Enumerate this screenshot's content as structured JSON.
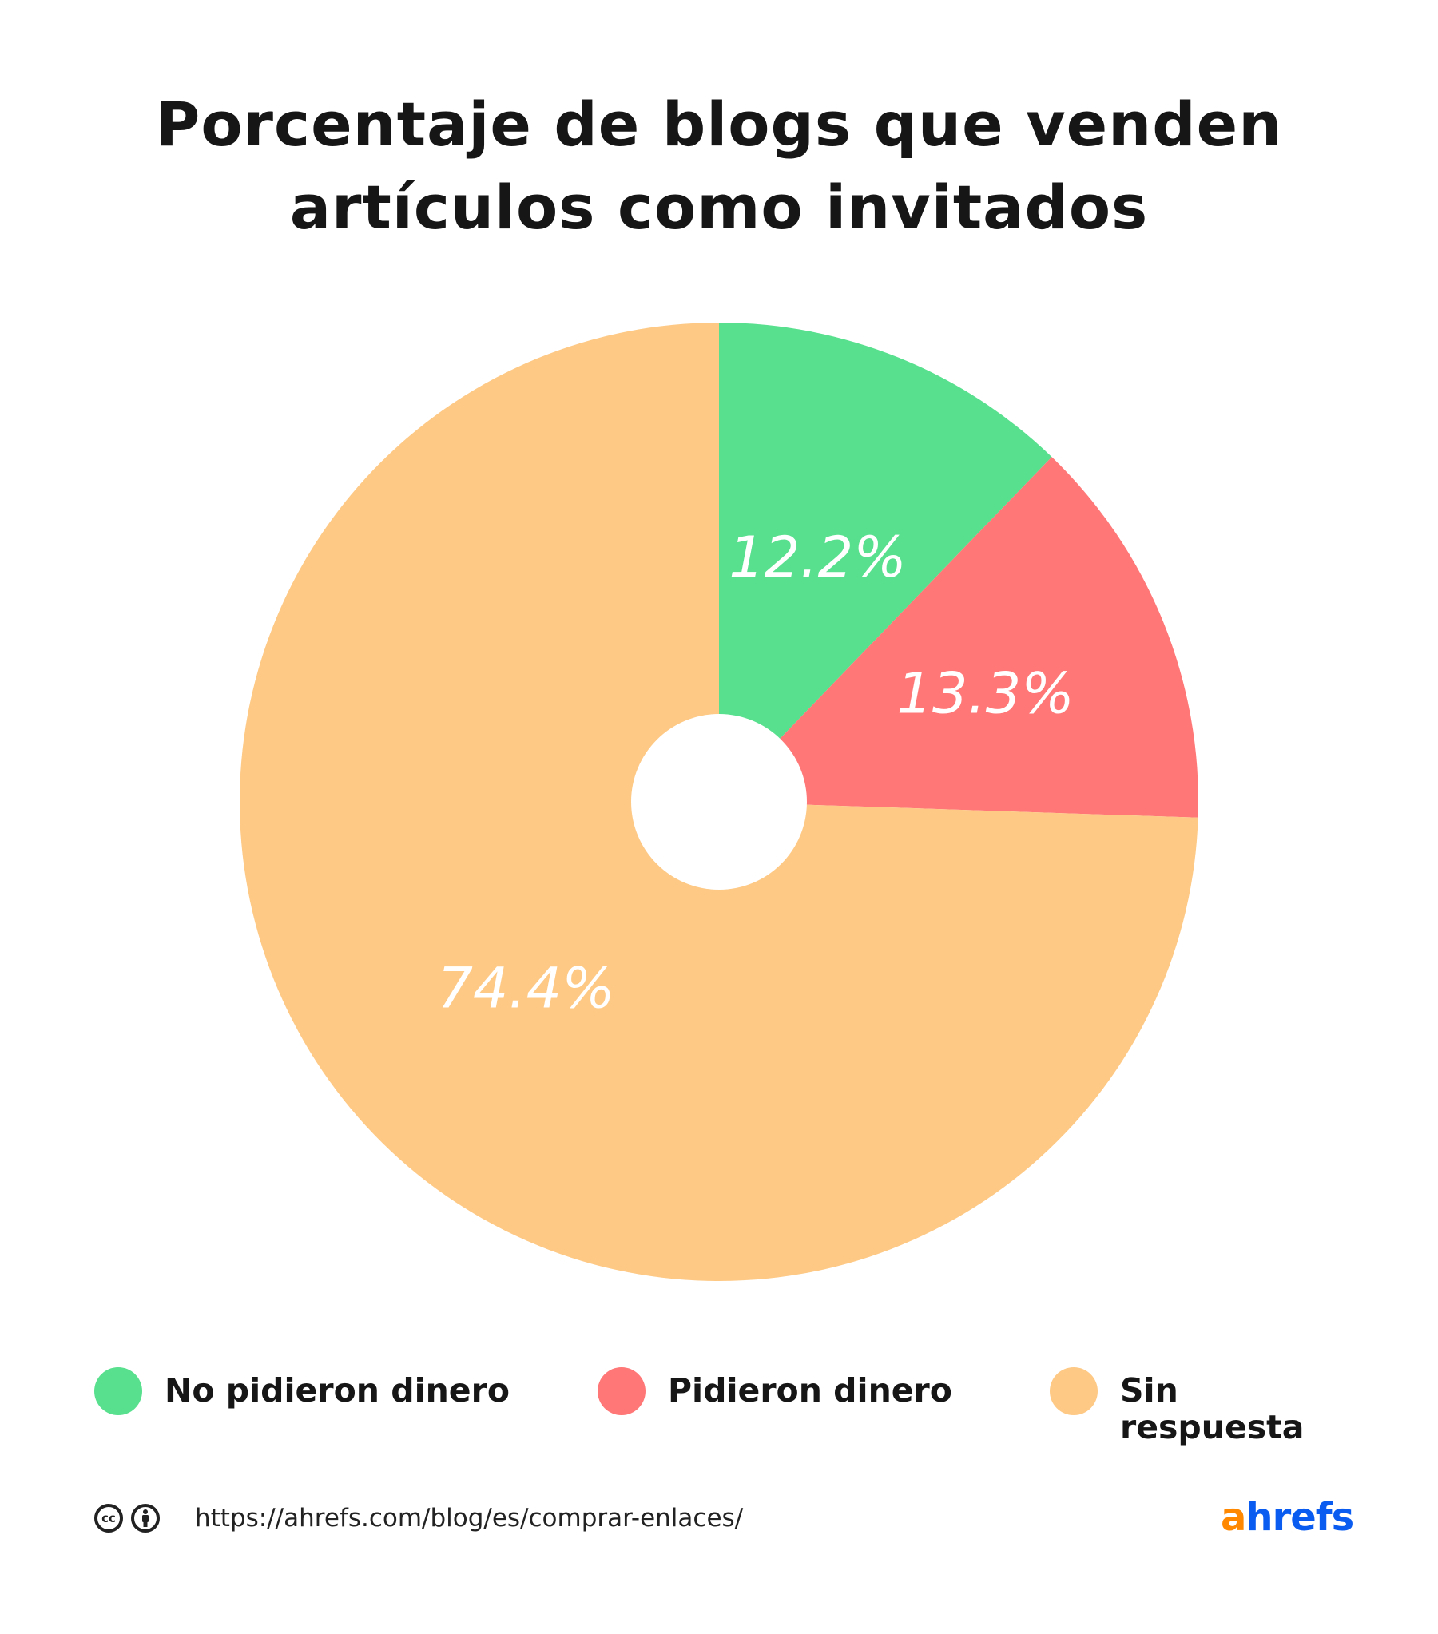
{
  "title": {
    "line1": "Porcentaje de blogs que venden",
    "line2": "artículos como invitados"
  },
  "chart_data": {
    "type": "pie",
    "donut_hole": true,
    "categories": [
      "No pidieron dinero",
      "Pidieron dinero",
      "Sin respuesta"
    ],
    "values": [
      12.2,
      13.3,
      74.4
    ],
    "labels": [
      "12.2%",
      "13.3%",
      "74.4%"
    ],
    "colors": [
      "#58e08e",
      "#ff7777",
      "#fec985"
    ],
    "legend_position": "bottom"
  },
  "legend": [
    {
      "label": "No pidieron dinero",
      "color": "#58e08e"
    },
    {
      "label": "Pidieron dinero",
      "color": "#ff7777"
    },
    {
      "label": "Sin respuesta",
      "color": "#fec985"
    }
  ],
  "footer": {
    "license_icons": [
      "creative-commons-icon",
      "attribution-icon"
    ],
    "cc_text": "cc",
    "url": "https://ahrefs.com/blog/es/comprar-enlaces/",
    "logo_a": "a",
    "logo_rest": "hrefs"
  }
}
